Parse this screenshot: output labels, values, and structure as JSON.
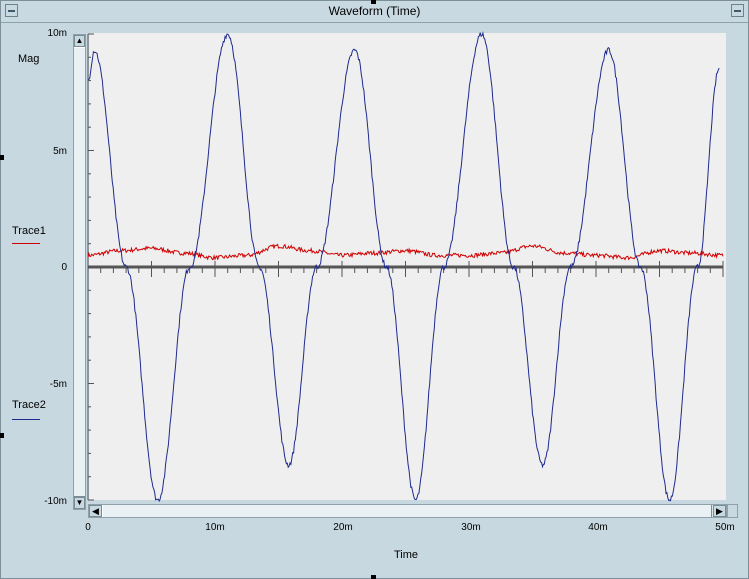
{
  "window": {
    "title": "Waveform (Time)"
  },
  "chart_data": {
    "type": "line",
    "title": "",
    "xlabel": "Time",
    "ylabel": "Mag",
    "xlim": [
      0,
      50
    ],
    "ylim": [
      -10,
      10
    ],
    "x_unit": "ms",
    "y_unit": "m",
    "x_ticks": [
      "0",
      "10m",
      "20m",
      "30m",
      "40m",
      "50m"
    ],
    "y_ticks": [
      "10m",
      "5m",
      "0",
      "-5m",
      "-10m"
    ],
    "grid": false,
    "legend_position": "left",
    "series": [
      {
        "name": "Trace1",
        "color": "#d00000",
        "x": [
          0,
          2.5,
          5,
          7.5,
          10,
          12.5,
          15,
          17.5,
          20,
          22.5,
          25,
          27.5,
          30,
          32.5,
          35,
          37.5,
          40,
          42.5,
          45,
          47.5,
          50
        ],
        "values": [
          0.5,
          0.7,
          0.8,
          0.6,
          0.4,
          0.5,
          0.9,
          0.7,
          0.5,
          0.6,
          0.7,
          0.5,
          0.5,
          0.6,
          0.9,
          0.6,
          0.5,
          0.4,
          0.7,
          0.6,
          0.5
        ]
      },
      {
        "name": "Trace2",
        "color": "#1e2a8e",
        "x": [
          0,
          0.5,
          3,
          5.5,
          8,
          11,
          13.5,
          15.8,
          18,
          21,
          23.5,
          25.8,
          28,
          31,
          33.5,
          35.8,
          38,
          41,
          43.5,
          45.8,
          48,
          49.7
        ],
        "values": [
          8.0,
          9.3,
          0,
          -10,
          0,
          10,
          0,
          -8.5,
          0,
          9.3,
          0,
          -10,
          0,
          10,
          0,
          -8.5,
          0,
          9.3,
          0,
          -10,
          0,
          8.5
        ]
      }
    ]
  }
}
